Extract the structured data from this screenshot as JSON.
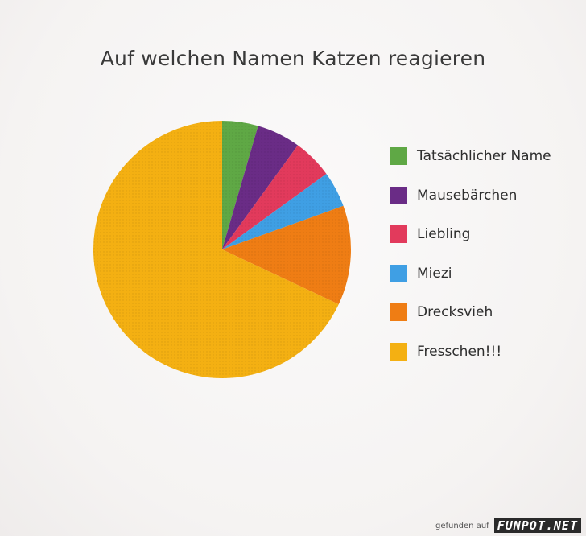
{
  "chart_data": {
    "type": "pie",
    "title": "Auf welchen Namen Katzen reagieren",
    "series": [
      {
        "name": "Tatsächlicher Name",
        "value": 4.5,
        "color": "#5fa845"
      },
      {
        "name": "Mausebärchen",
        "value": 5.5,
        "color": "#6a2c86"
      },
      {
        "name": "Liebling",
        "value": 5,
        "color": "#e23a5c"
      },
      {
        "name": "Miezi",
        "value": 4.5,
        "color": "#3f9fe4"
      },
      {
        "name": "Drecksvieh",
        "value": 12.5,
        "color": "#ef7d14"
      },
      {
        "name": "Fresschen!!!",
        "value": 68,
        "color": "#f4b012"
      }
    ],
    "legend_position": "right",
    "start_angle": "top, clockwise"
  },
  "watermark": {
    "prefix": "gefunden auf",
    "logo": "FUNPOT.NET"
  }
}
